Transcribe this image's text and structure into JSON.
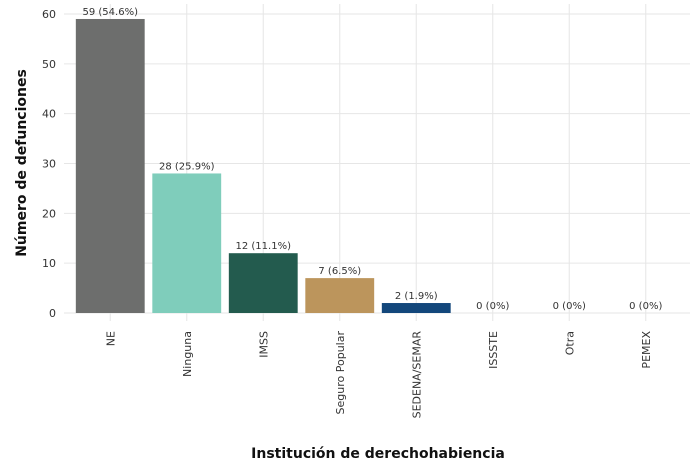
{
  "chart_data": {
    "type": "bar",
    "xlabel": "Institución de derechohabiencia",
    "ylabel": "Número de defunciones",
    "categories": [
      "NE",
      "Ninguna",
      "IMSS",
      "Seguro Popular",
      "SEDENA/SEMAR",
      "ISSSTE",
      "Otra",
      "PEMEX"
    ],
    "values": [
      59,
      28,
      12,
      7,
      2,
      0,
      0,
      0
    ],
    "value_labels": [
      "59 (54.6%)",
      "28 (25.9%)",
      "12 (11.1%)",
      "7 (6.5%)",
      "2 (1.9%)",
      "0 (0%)",
      "0 (0%)",
      "0 (0%)"
    ],
    "colors": [
      "#6d6e6d",
      "#7fcdbb",
      "#235b4e",
      "#bc955c",
      "#13477b",
      "#9e9e9e",
      "#9e9e9e",
      "#9e9e9e"
    ],
    "ylim": [
      0,
      60
    ],
    "yticks": [
      0,
      10,
      20,
      30,
      40,
      50,
      60
    ],
    "grid": true
  }
}
